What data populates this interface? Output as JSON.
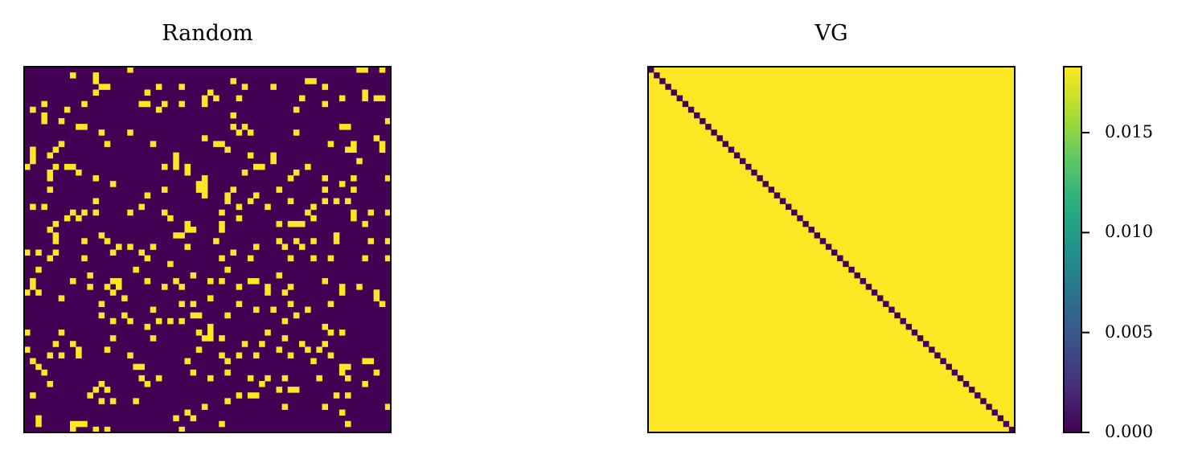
{
  "chart_data": [
    {
      "type": "heatmap",
      "title": "Random",
      "size": 64,
      "pattern": "random-binary",
      "density": 0.09,
      "values_range": [
        0,
        1
      ],
      "colormap": "viridis",
      "axes_ticks": "none"
    },
    {
      "type": "heatmap",
      "title": "VG",
      "size": 64,
      "pattern": "constant-off-diagonal-zero-diagonal",
      "off_diagonal_value": 0.0183,
      "diagonal_value": 0.0,
      "colormap": "viridis",
      "axes_ticks": "none",
      "colorbar": {
        "range": [
          0.0,
          0.0183
        ],
        "ticks": [
          0.0,
          0.005,
          0.01,
          0.015
        ],
        "tick_labels": [
          "0.000",
          "0.005",
          "0.010",
          "0.015"
        ]
      }
    }
  ],
  "colors": {
    "viridis_low": "#440154",
    "viridis_high": "#fde725"
  }
}
